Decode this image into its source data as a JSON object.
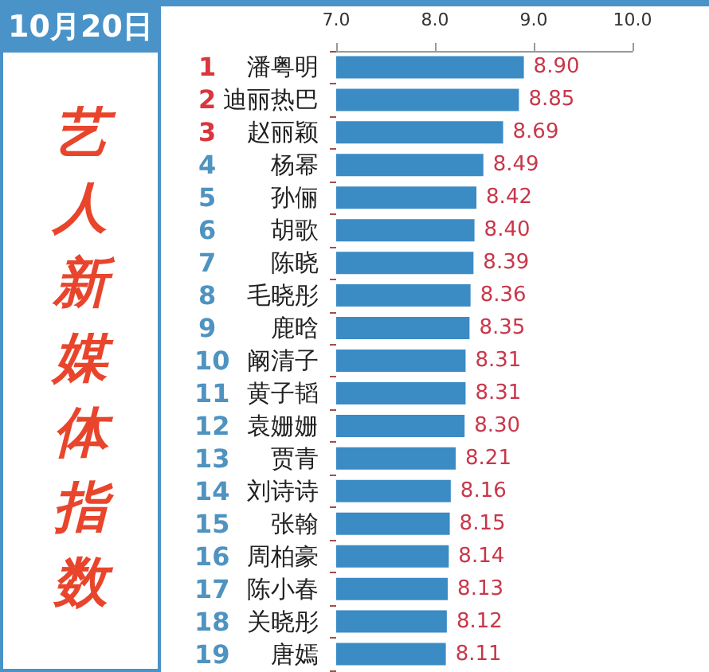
{
  "chart_data": {
    "type": "bar",
    "orientation": "horizontal",
    "title": "艺人新媒体指数",
    "subtitle": "10月20日",
    "categories": [
      "1 潘粤明",
      "2 迪丽热巴",
      "3 赵丽颖",
      "4 杨幂",
      "5 孙俪",
      "6 胡歌",
      "7 陈晓",
      "8 毛晓彤",
      "9 鹿晗",
      "10 阚清子",
      "11 黄子韬",
      "12 袁姗姗",
      "13 贾青",
      "14 刘诗诗",
      "15 张翰",
      "16 周柏豪",
      "17 陈小春",
      "18 关晓彤",
      "19 唐嫣"
    ],
    "values": [
      8.9,
      8.85,
      8.69,
      8.49,
      8.42,
      8.4,
      8.39,
      8.36,
      8.35,
      8.31,
      8.31,
      8.3,
      8.21,
      8.16,
      8.15,
      8.14,
      8.13,
      8.12,
      8.11
    ],
    "value_labels": [
      "8.90",
      "8.85",
      "8.69",
      "8.49",
      "8.42",
      "8.40",
      "8.39",
      "8.36",
      "8.35",
      "8.31",
      "8.31",
      "8.30",
      "8.21",
      "8.16",
      "8.15",
      "8.14",
      "8.13",
      "8.12",
      "8.11"
    ],
    "color": "#3b8bc5",
    "xlim": [
      7,
      10
    ],
    "xticks": [
      {
        "value": 7,
        "label": "7.0"
      },
      {
        "value": 8,
        "label": "8.0"
      },
      {
        "value": 9,
        "label": "9.0"
      },
      {
        "value": 10,
        "label": "10.0"
      }
    ],
    "grid": false
  }
}
